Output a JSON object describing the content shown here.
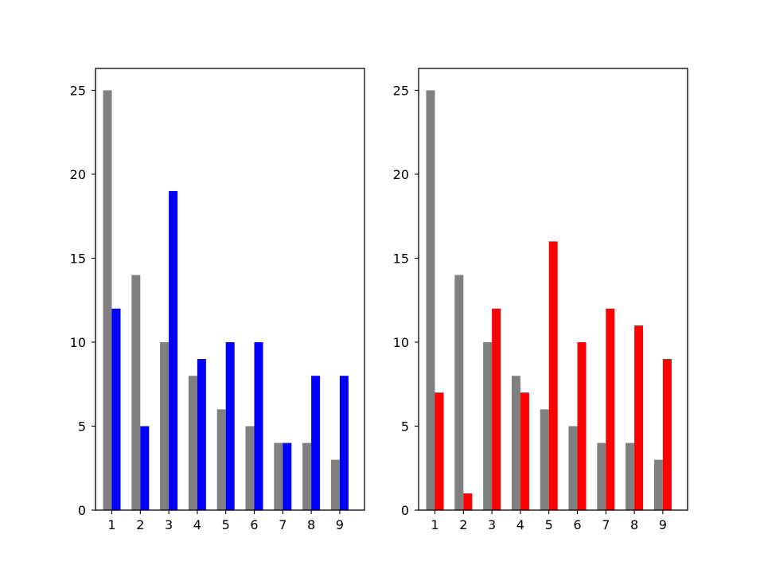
{
  "chart_data": [
    {
      "type": "bar",
      "title": "",
      "xlabel": "",
      "ylabel": "",
      "categories": [
        "1",
        "2",
        "3",
        "4",
        "5",
        "6",
        "7",
        "8",
        "9"
      ],
      "series": [
        {
          "color": "#808080",
          "values": [
            25,
            14,
            10,
            8,
            6,
            5,
            4,
            4,
            3
          ]
        },
        {
          "color": "#0000ff",
          "values": [
            12,
            5,
            19,
            9,
            10,
            10,
            4,
            8,
            8
          ]
        }
      ],
      "ylim": [
        0,
        26.3
      ],
      "yticks": [
        "0",
        "5",
        "10",
        "15",
        "20",
        "25"
      ],
      "grid": false,
      "legend": "none"
    },
    {
      "type": "bar",
      "title": "",
      "xlabel": "",
      "ylabel": "",
      "categories": [
        "1",
        "2",
        "3",
        "4",
        "5",
        "6",
        "7",
        "8",
        "9"
      ],
      "series": [
        {
          "color": "#808080",
          "values": [
            25,
            14,
            10,
            8,
            6,
            5,
            4,
            4,
            3
          ]
        },
        {
          "color": "#ff0000",
          "values": [
            7,
            1,
            12,
            7,
            16,
            10,
            12,
            11,
            9
          ]
        }
      ],
      "ylim": [
        0,
        26.3
      ],
      "yticks": [
        "0",
        "5",
        "10",
        "15",
        "20",
        "25"
      ],
      "grid": false,
      "legend": "none"
    }
  ]
}
